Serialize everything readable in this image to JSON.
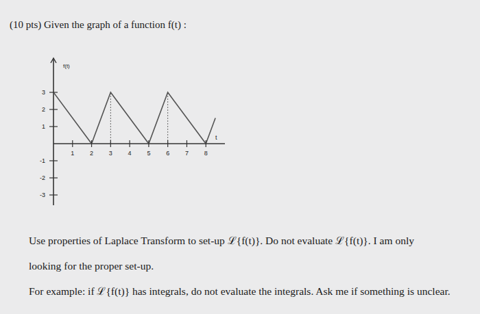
{
  "header": {
    "text": "(10 pts) Given the graph of a function f(t) :"
  },
  "chart_data": {
    "type": "line",
    "x_label": "t",
    "y_label": "f(t)",
    "x": [
      0,
      2,
      3,
      5,
      6,
      8,
      8.5
    ],
    "values": [
      3,
      0,
      3,
      0,
      3,
      0,
      1.5
    ],
    "color": "#555555",
    "xlim": [
      0,
      9
    ],
    "ylim": [
      -3.6,
      5
    ],
    "xticks": [
      1,
      2,
      3,
      4,
      5,
      6,
      7,
      8
    ],
    "yticks": [
      -3,
      -2,
      -1,
      1,
      2,
      3
    ],
    "dashed_lines": [
      3,
      6
    ]
  },
  "body": {
    "paragraphs": [
      [
        "Use properties of Laplace Transform to set-up ℒ{f(t)}. Do not evaluate ℒ{f(t)}. I am only",
        "looking for the proper set-up."
      ],
      [
        "For example: if ℒ{f(t)} has integrals, do not evaluate the integrals. Ask me if something is unclear."
      ]
    ]
  }
}
